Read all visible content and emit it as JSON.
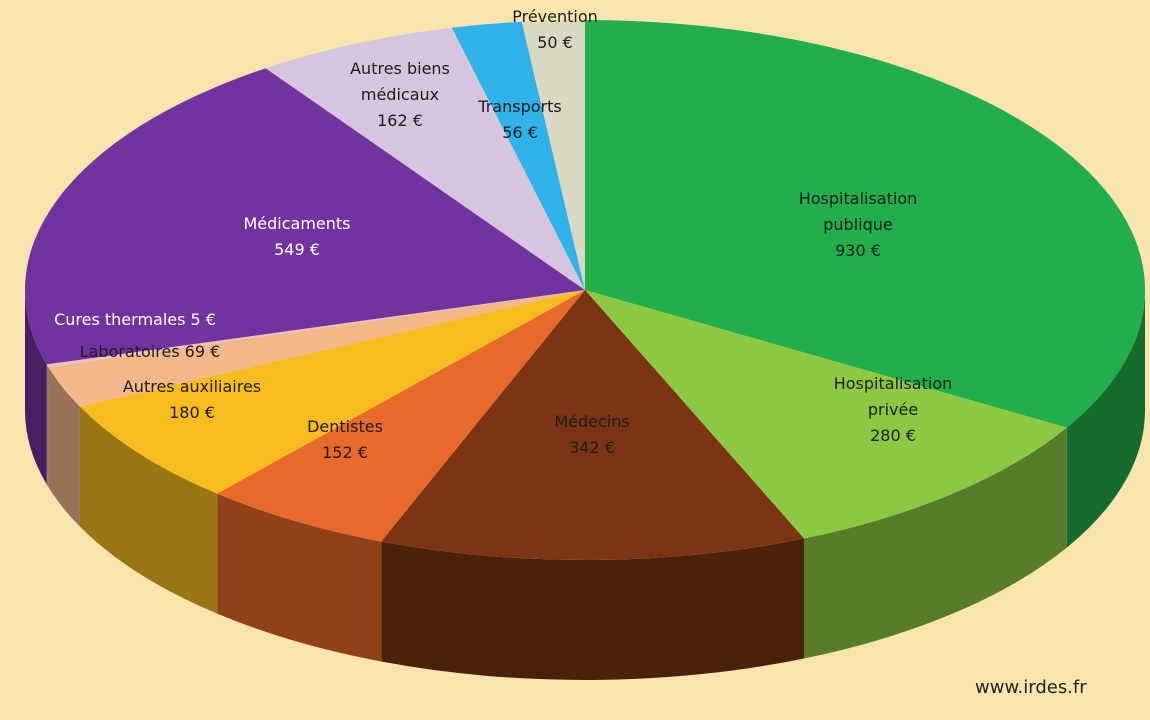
{
  "chart_data": {
    "type": "pie",
    "categories": [
      "Hospitalisation publique",
      "Hospitalisation privée",
      "Médecins",
      "Dentistes",
      "Autres auxiliaires",
      "Laboratoires",
      "Cures thermales",
      "Médicaments",
      "Autres biens médicaux",
      "Transports",
      "Prévention"
    ],
    "values": [
      930,
      280,
      342,
      152,
      180,
      69,
      5,
      549,
      162,
      56,
      50
    ],
    "value_labels": [
      "930 €",
      "280 €",
      "342 €",
      "152 €",
      "180 €",
      "69 €",
      "5 €",
      "549 €",
      "162 €",
      "56 €",
      "50 €"
    ],
    "colors": [
      "#23ae4c",
      "#8dc843",
      "#7b3514",
      "#e8692a",
      "#f7bc1e",
      "#f3b88a",
      "#e9c2c6",
      "#7232a0",
      "#d5c5df",
      "#2fb2e8",
      "#d9d8c2"
    ],
    "source": "www.irdes.fr"
  }
}
